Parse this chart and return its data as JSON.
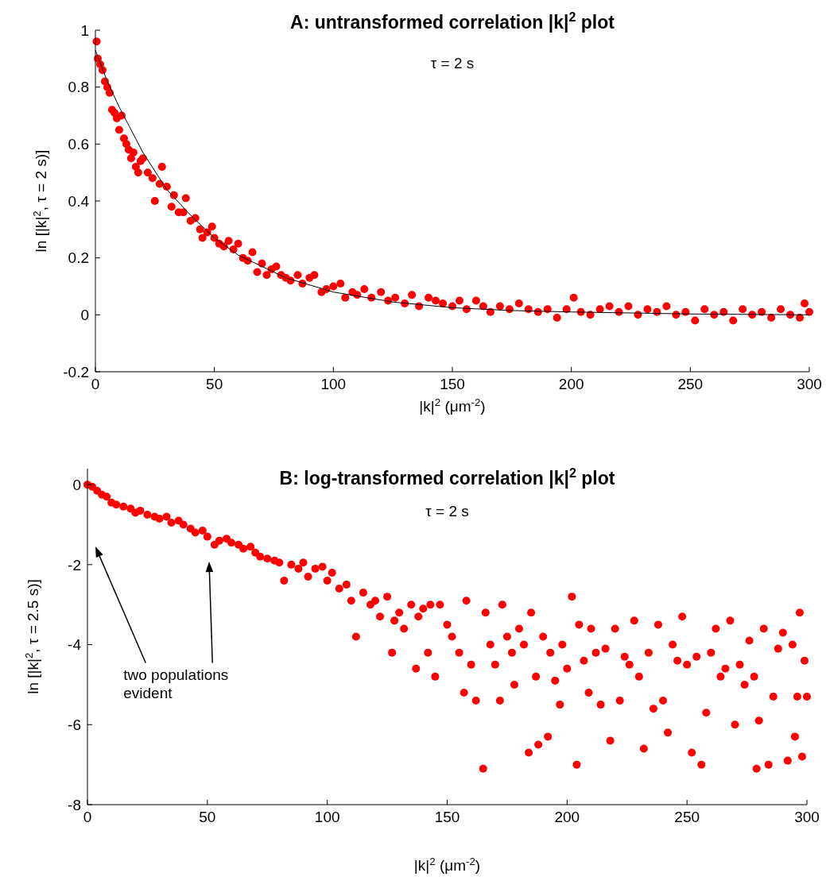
{
  "chart_data": [
    {
      "type": "scatter",
      "title": "A: untransformed correlation |k|$^{2}$ plot",
      "subtitle": "τ = 2 s",
      "xlabel": "|k|$^{2}$ (μm$^{-2}$)",
      "ylabel": "ln [|k|$^{2}$, τ = 2 s)]",
      "xlim": [
        0,
        300
      ],
      "ylim": [
        -0.2,
        1
      ],
      "xticks": [
        0,
        50,
        100,
        150,
        200,
        250,
        300
      ],
      "yticks": [
        -0.2,
        0,
        0.2,
        0.4,
        0.6,
        0.8,
        1
      ],
      "series": [
        {
          "color": "#ff0000",
          "marker": "circle",
          "x": [
            0.5,
            1,
            2,
            3,
            4,
            5,
            6,
            7,
            8,
            9,
            10,
            11,
            12,
            13,
            14,
            15,
            16,
            17,
            18,
            19,
            20,
            22,
            24,
            25,
            27,
            28,
            30,
            32,
            33,
            35,
            37,
            38,
            40,
            42,
            44,
            45,
            47,
            49,
            50,
            52,
            54,
            56,
            58,
            60,
            62,
            64,
            66,
            68,
            70,
            72,
            74,
            76,
            78,
            80,
            82,
            85,
            87,
            90,
            92,
            95,
            97,
            100,
            103,
            105,
            108,
            110,
            113,
            116,
            120,
            123,
            126,
            130,
            133,
            136,
            140,
            143,
            146,
            150,
            153,
            156,
            160,
            163,
            166,
            170,
            174,
            178,
            182,
            186,
            190,
            194,
            198,
            201,
            204,
            208,
            212,
            216,
            220,
            224,
            228,
            232,
            236,
            240,
            244,
            248,
            252,
            256,
            260,
            264,
            268,
            272,
            276,
            280,
            284,
            288,
            292,
            296,
            298,
            300
          ],
          "values": [
            0.96,
            0.9,
            0.88,
            0.86,
            0.82,
            0.8,
            0.78,
            0.72,
            0.71,
            0.69,
            0.65,
            0.7,
            0.62,
            0.6,
            0.58,
            0.55,
            0.57,
            0.52,
            0.5,
            0.54,
            0.55,
            0.5,
            0.48,
            0.4,
            0.46,
            0.52,
            0.45,
            0.38,
            0.42,
            0.36,
            0.36,
            0.41,
            0.33,
            0.34,
            0.3,
            0.27,
            0.29,
            0.31,
            0.27,
            0.25,
            0.24,
            0.26,
            0.23,
            0.25,
            0.2,
            0.19,
            0.22,
            0.15,
            0.18,
            0.14,
            0.16,
            0.17,
            0.14,
            0.13,
            0.12,
            0.14,
            0.11,
            0.13,
            0.14,
            0.08,
            0.09,
            0.1,
            0.11,
            0.06,
            0.08,
            0.07,
            0.09,
            0.06,
            0.08,
            0.05,
            0.06,
            0.04,
            0.07,
            0.03,
            0.06,
            0.05,
            0.04,
            0.03,
            0.05,
            0.02,
            0.05,
            0.03,
            0.01,
            0.03,
            0.02,
            0.04,
            0.02,
            0.01,
            0.02,
            -0.01,
            0.02,
            0.06,
            0.01,
            0.0,
            0.02,
            0.03,
            0.01,
            0.03,
            0.0,
            0.02,
            0.01,
            0.03,
            0.0,
            0.01,
            -0.02,
            0.02,
            0.0,
            0.01,
            -0.02,
            0.02,
            0.0,
            0.01,
            -0.01,
            0.02,
            0.0,
            -0.01,
            0.04,
            0.01
          ]
        },
        {
          "type": "line",
          "color": "#000000",
          "x": [
            0,
            5,
            10,
            20,
            30,
            40,
            50,
            60,
            70,
            80,
            100,
            125,
            150,
            175,
            200,
            250,
            300
          ],
          "values": [
            0.93,
            0.82,
            0.73,
            0.57,
            0.44,
            0.35,
            0.27,
            0.21,
            0.17,
            0.13,
            0.08,
            0.045,
            0.025,
            0.015,
            0.01,
            0.003,
            0
          ]
        }
      ]
    },
    {
      "type": "scatter",
      "title": "B: log-transformed correlation |k|$^{2}$ plot",
      "subtitle": "τ = 2 s",
      "xlabel": "|k|$^{2}$ (μm$^{-2}$)",
      "ylabel": "ln [|k|$^{2}$, τ = 2.5 s)]",
      "xlim": [
        0,
        300
      ],
      "ylim": [
        -8,
        0.4
      ],
      "xticks": [
        0,
        50,
        100,
        150,
        200,
        250,
        300
      ],
      "yticks": [
        -8,
        -6,
        -4,
        -2,
        0
      ],
      "annotations": [
        "two populations evident"
      ],
      "series": [
        {
          "color": "#ff0000",
          "marker": "circle",
          "x": [
            0,
            2,
            4,
            6,
            8,
            10,
            12,
            15,
            18,
            20,
            22,
            25,
            28,
            30,
            33,
            35,
            38,
            40,
            43,
            45,
            48,
            50,
            53,
            55,
            58,
            60,
            63,
            65,
            68,
            70,
            72,
            75,
            78,
            80,
            82,
            85,
            88,
            90,
            92,
            95,
            98,
            100,
            102,
            105,
            108,
            110,
            112,
            115,
            118,
            120,
            122,
            125,
            127,
            128,
            130,
            132,
            135,
            137,
            138,
            140,
            142,
            143,
            145,
            147,
            150,
            152,
            155,
            157,
            158,
            160,
            162,
            165,
            166,
            168,
            170,
            172,
            173,
            175,
            177,
            178,
            180,
            182,
            184,
            185,
            187,
            188,
            190,
            192,
            193,
            195,
            197,
            198,
            200,
            202,
            204,
            205,
            207,
            209,
            210,
            212,
            214,
            216,
            218,
            220,
            222,
            224,
            226,
            228,
            230,
            232,
            234,
            236,
            238,
            240,
            242,
            244,
            246,
            248,
            250,
            252,
            254,
            256,
            258,
            260,
            262,
            264,
            266,
            268,
            270,
            272,
            274,
            276,
            278,
            279,
            280,
            282,
            284,
            286,
            288,
            290,
            292,
            294,
            295,
            296,
            297,
            298,
            299,
            300
          ],
          "values": [
            0,
            -0.05,
            -0.15,
            -0.25,
            -0.3,
            -0.45,
            -0.5,
            -0.55,
            -0.6,
            -0.7,
            -0.65,
            -0.75,
            -0.8,
            -0.85,
            -0.8,
            -0.95,
            -0.9,
            -1.0,
            -1.1,
            -1.2,
            -1.15,
            -1.3,
            -1.5,
            -1.4,
            -1.35,
            -1.45,
            -1.5,
            -1.6,
            -1.55,
            -1.7,
            -1.8,
            -1.85,
            -1.9,
            -1.95,
            -2.4,
            -2.0,
            -2.1,
            -1.95,
            -2.3,
            -2.1,
            -2.05,
            -2.4,
            -2.2,
            -2.6,
            -2.5,
            -2.9,
            -3.8,
            -2.7,
            -3.0,
            -2.9,
            -3.3,
            -2.8,
            -4.2,
            -3.4,
            -3.2,
            -3.6,
            -3.0,
            -4.6,
            -3.3,
            -3.1,
            -4.2,
            -3.0,
            -4.8,
            -3.0,
            -3.5,
            -3.8,
            -4.2,
            -5.2,
            -2.9,
            -4.5,
            -5.4,
            -7.1,
            -3.2,
            -4.0,
            -4.5,
            -5.4,
            -3.0,
            -3.8,
            -4.2,
            -5.0,
            -3.6,
            -4.0,
            -6.7,
            -3.2,
            -4.8,
            -6.5,
            -3.8,
            -6.3,
            -4.2,
            -4.9,
            -5.5,
            -4.0,
            -4.6,
            -2.8,
            -7.0,
            -3.5,
            -4.4,
            -5.2,
            -3.6,
            -4.2,
            -5.5,
            -4.1,
            -6.4,
            -3.6,
            -5.4,
            -4.3,
            -4.5,
            -3.4,
            -4.8,
            -6.6,
            -4.2,
            -5.6,
            -3.5,
            -5.4,
            -6.2,
            -4.0,
            -4.4,
            -3.3,
            -4.5,
            -6.7,
            -4.3,
            -7.0,
            -5.7,
            -4.2,
            -3.6,
            -4.8,
            -4.6,
            -3.4,
            -6.0,
            -4.5,
            -5.0,
            -3.9,
            -4.8,
            -7.1,
            -5.9,
            -3.6,
            -7.0,
            -5.3,
            -4.1,
            -3.7,
            -6.9,
            -4.0,
            -6.3,
            -5.3,
            -3.2,
            -6.8,
            -4.4,
            -5.3
          ]
        }
      ]
    }
  ]
}
